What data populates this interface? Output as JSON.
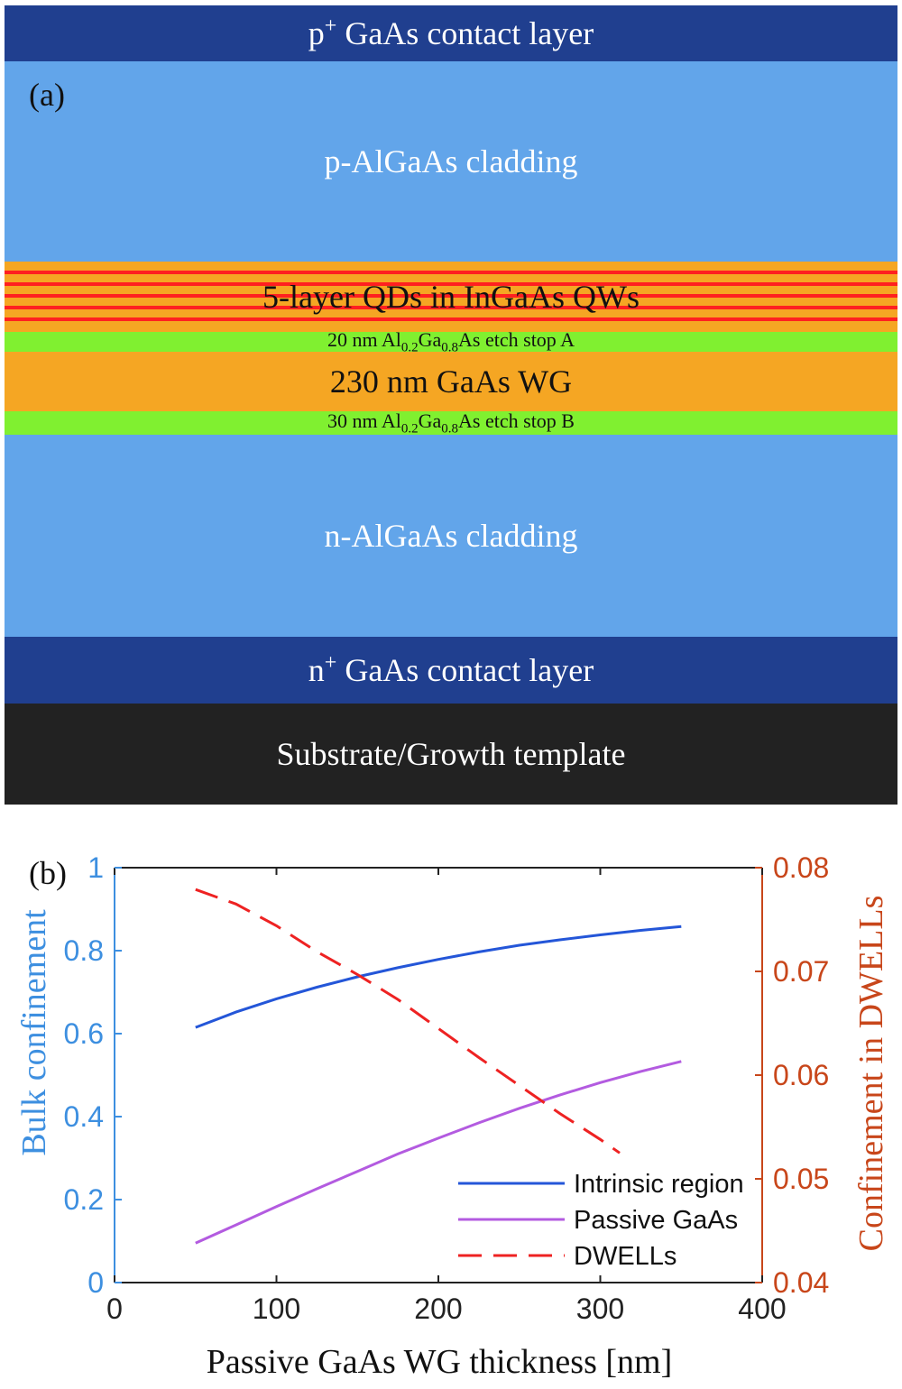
{
  "panel_a": {
    "tag": "(a)",
    "layers": {
      "p_contact": {
        "pre": "p",
        "sup": "+",
        "post": " GaAs contact layer",
        "color": "#203f8f"
      },
      "p_cladding": {
        "text": "p-AlGaAs cladding",
        "color": "#62a5ea"
      },
      "qd": {
        "text": "5-layer QDs in InGaAs QWs",
        "color": "#f5a623",
        "stripe_color": "#ff2020"
      },
      "etch_a": {
        "pre": "20 nm Al",
        "sub1": "0.2",
        "mid": "Ga",
        "sub2": "0.8",
        "post": "As etch stop A",
        "color": "#80f030"
      },
      "wg": {
        "text": "230 nm GaAs WG",
        "color": "#f5a623"
      },
      "etch_b": {
        "pre": "30 nm Al",
        "sub1": "0.2",
        "mid": "Ga",
        "sub2": "0.8",
        "post": "As etch stop B",
        "color": "#80f030"
      },
      "n_cladding": {
        "text": "n-AlGaAs cladding",
        "color": "#62a5ea"
      },
      "n_contact": {
        "pre": "n",
        "sup": "+",
        "post": " GaAs contact layer",
        "color": "#203f8f"
      },
      "substrate": {
        "text": "Substrate/Growth template",
        "color": "#222222"
      }
    }
  },
  "chart_data": {
    "type": "line",
    "tag": "(b)",
    "xlabel": "Passive GaAs WG thickness [nm]",
    "ylabel_left": "Bulk confinement",
    "ylabel_right": "Confinement in DWELLs",
    "xlim": [
      0,
      400
    ],
    "ylim_left": [
      0,
      1
    ],
    "ylim_right": [
      0.04,
      0.08
    ],
    "xticks": [
      0,
      100,
      200,
      300,
      400
    ],
    "yticks_left": [
      0,
      0.2,
      0.4,
      0.6,
      0.8,
      1
    ],
    "yticks_right": [
      0.04,
      0.05,
      0.06,
      0.07,
      0.08
    ],
    "ytick_labels_left": [
      "0",
      "0.2",
      "0.4",
      "0.6",
      "0.8",
      "1"
    ],
    "ytick_labels_right": [
      "0.04",
      "0.05",
      "0.06",
      "0.07",
      "0.08"
    ],
    "left_axis_color": "#3d8fe0",
    "right_axis_color": "#c8461a",
    "legend_position": "bottom-right",
    "series": [
      {
        "name": "Intrinsic region",
        "axis": "left",
        "color": "#2456d8",
        "dashed": false,
        "x": [
          50,
          75,
          100,
          125,
          150,
          175,
          200,
          225,
          250,
          275,
          300,
          325,
          350
        ],
        "y": [
          0.615,
          0.652,
          0.684,
          0.712,
          0.737,
          0.759,
          0.779,
          0.797,
          0.813,
          0.826,
          0.838,
          0.849,
          0.858
        ]
      },
      {
        "name": "Passive GaAs",
        "axis": "left",
        "color": "#b35be0",
        "dashed": false,
        "x": [
          50,
          75,
          100,
          125,
          150,
          175,
          200,
          225,
          250,
          275,
          300,
          325,
          350
        ],
        "y": [
          0.095,
          0.139,
          0.183,
          0.226,
          0.268,
          0.31,
          0.348,
          0.385,
          0.42,
          0.452,
          0.482,
          0.509,
          0.533
        ]
      },
      {
        "name": "DWELLs",
        "axis": "right",
        "color": "#ee2222",
        "dashed": true,
        "x": [
          50,
          75,
          100,
          125,
          150,
          175,
          200,
          225,
          250,
          275,
          300,
          312
        ],
        "y": [
          0.0779,
          0.0765,
          0.0744,
          0.0719,
          0.0697,
          0.0673,
          0.0645,
          0.0617,
          0.059,
          0.0563,
          0.0538,
          0.0525
        ]
      }
    ]
  }
}
